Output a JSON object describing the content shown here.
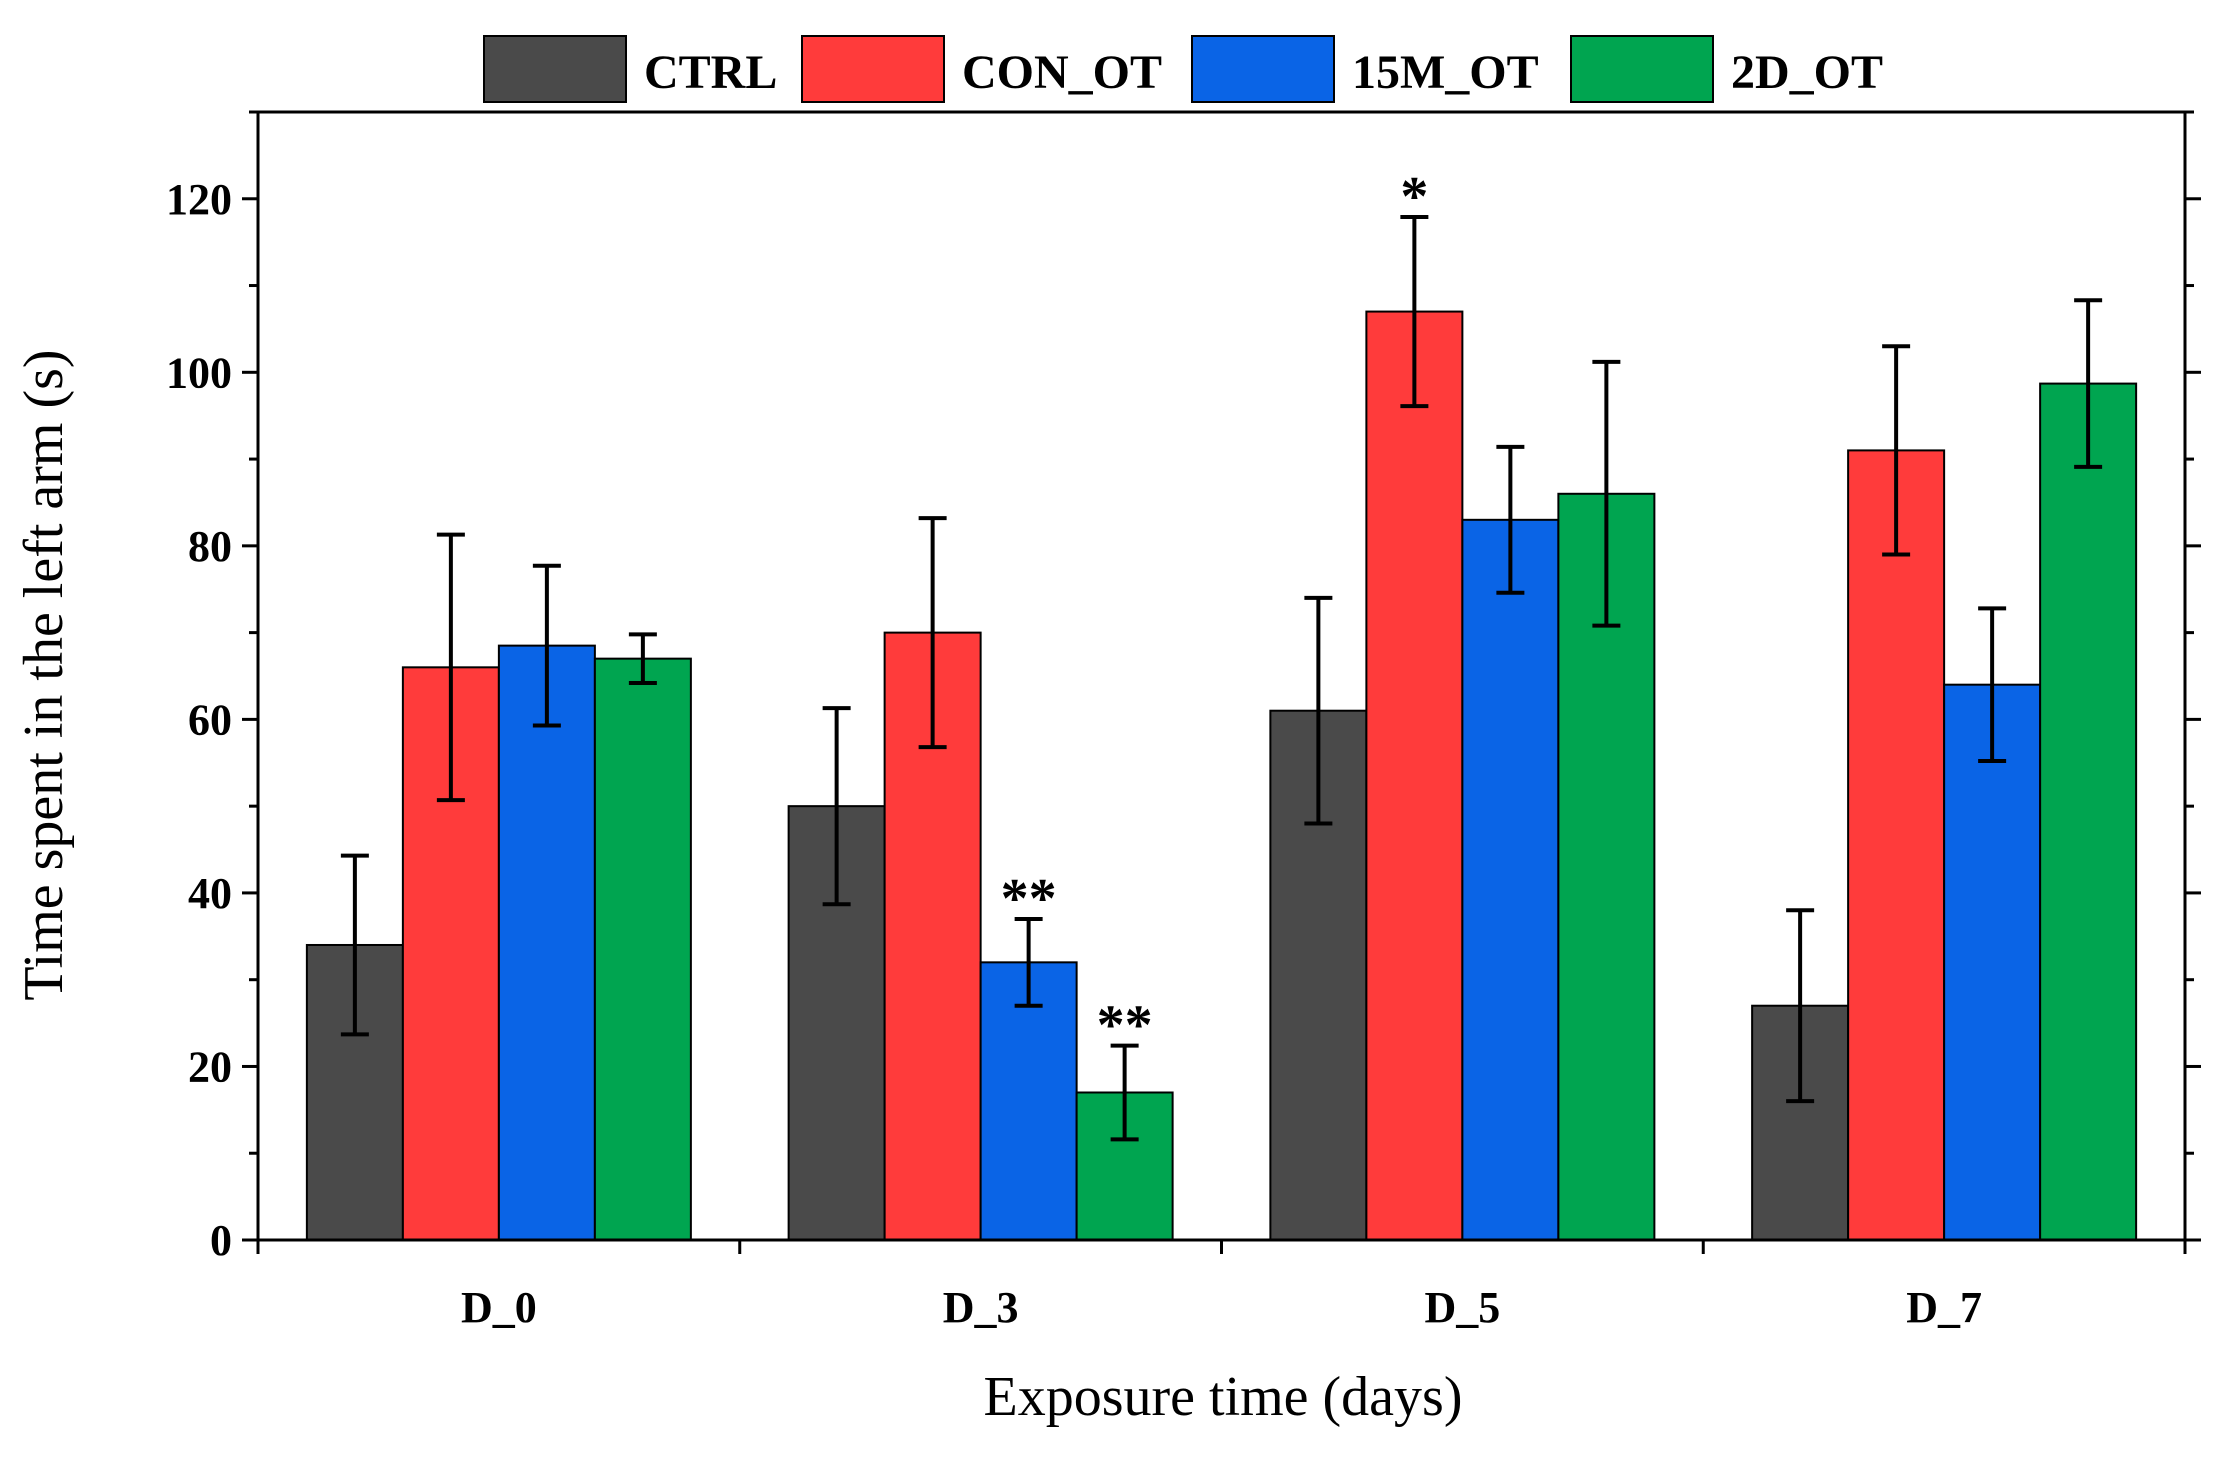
{
  "chart_data": {
    "type": "bar",
    "categories": [
      "D_0",
      "D_3",
      "D_5",
      "D_7"
    ],
    "series": [
      {
        "name": "CTRL",
        "color": "#4a4a4a",
        "values": [
          34,
          50,
          61,
          27
        ],
        "errors": [
          10.3,
          11.3,
          13.0,
          11.0
        ]
      },
      {
        "name": "CON_OT",
        "color": "#ff3b3b",
        "values": [
          66,
          70,
          107,
          91
        ],
        "errors": [
          15.3,
          13.2,
          10.9,
          12.0
        ]
      },
      {
        "name": "15M_OT",
        "color": "#0a64e6",
        "values": [
          68.5,
          32,
          83,
          64
        ],
        "errors": [
          9.2,
          5.0,
          8.4,
          8.8
        ]
      },
      {
        "name": "2D_OT",
        "color": "#00a550",
        "values": [
          67,
          17,
          86,
          98.7
        ],
        "errors": [
          2.8,
          5.4,
          15.2,
          9.6
        ]
      }
    ],
    "significance": [
      {
        "category": "D_3",
        "series": "15M_OT",
        "label": "**"
      },
      {
        "category": "D_3",
        "series": "2D_OT",
        "label": "**"
      },
      {
        "category": "D_5",
        "series": "CON_OT",
        "label": "*"
      }
    ],
    "yticks": [
      0,
      20,
      40,
      60,
      80,
      100,
      120
    ],
    "ylim": [
      0,
      130
    ],
    "xlabel": "Exposure time (days)",
    "ylabel": "Time spent in the left arm (s)",
    "legend_position": "top-center",
    "grid": false
  }
}
